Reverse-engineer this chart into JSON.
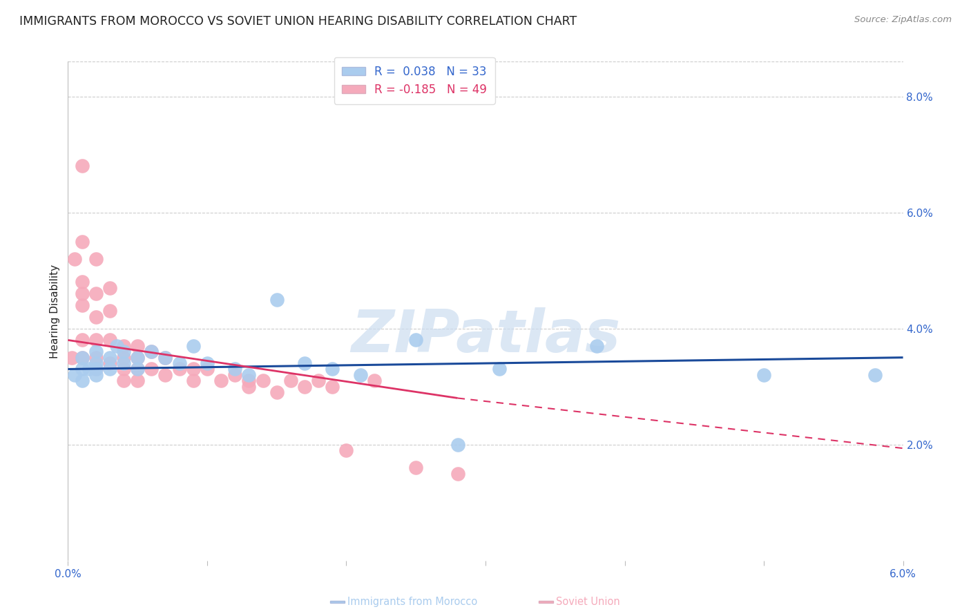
{
  "title": "IMMIGRANTS FROM MOROCCO VS SOVIET UNION HEARING DISABILITY CORRELATION CHART",
  "source": "Source: ZipAtlas.com",
  "ylabel": "Hearing Disability",
  "watermark": "ZIPatlas",
  "xlim": [
    0.0,
    0.06
  ],
  "ylim": [
    0.0,
    0.086
  ],
  "xtick_positions": [
    0.0,
    0.01,
    0.02,
    0.03,
    0.04,
    0.05,
    0.06
  ],
  "xtick_labels": [
    "0.0%",
    "",
    "",
    "",
    "",
    "",
    "6.0%"
  ],
  "yticks_right": [
    0.02,
    0.04,
    0.06,
    0.08
  ],
  "ytick_right_labels": [
    "2.0%",
    "4.0%",
    "6.0%",
    "8.0%"
  ],
  "morocco_R": 0.038,
  "morocco_N": 33,
  "soviet_R": -0.185,
  "soviet_N": 49,
  "morocco_color": "#aaccee",
  "soviet_color": "#f5aabb",
  "morocco_line_color": "#1a4a9a",
  "soviet_line_color": "#dd3366",
  "background_color": "#ffffff",
  "grid_color": "#cccccc",
  "axis_color": "#3366cc",
  "title_color": "#222222",
  "title_fontsize": 12.5,
  "label_fontsize": 11,
  "tick_fontsize": 11,
  "legend_fontsize": 12,
  "morocco_scatter_x": [
    0.0005,
    0.001,
    0.001,
    0.001,
    0.0015,
    0.002,
    0.002,
    0.002,
    0.002,
    0.003,
    0.003,
    0.0035,
    0.004,
    0.004,
    0.005,
    0.005,
    0.006,
    0.007,
    0.008,
    0.009,
    0.01,
    0.012,
    0.013,
    0.015,
    0.017,
    0.019,
    0.021,
    0.025,
    0.028,
    0.031,
    0.038,
    0.05,
    0.058
  ],
  "morocco_scatter_y": [
    0.032,
    0.033,
    0.031,
    0.035,
    0.033,
    0.036,
    0.034,
    0.032,
    0.033,
    0.035,
    0.033,
    0.037,
    0.036,
    0.034,
    0.033,
    0.035,
    0.036,
    0.035,
    0.034,
    0.037,
    0.034,
    0.033,
    0.032,
    0.045,
    0.034,
    0.033,
    0.032,
    0.038,
    0.02,
    0.033,
    0.037,
    0.032,
    0.032
  ],
  "soviet_scatter_x": [
    0.0003,
    0.0005,
    0.001,
    0.001,
    0.001,
    0.001,
    0.001,
    0.001,
    0.001,
    0.002,
    0.002,
    0.002,
    0.002,
    0.002,
    0.002,
    0.003,
    0.003,
    0.003,
    0.003,
    0.004,
    0.004,
    0.004,
    0.004,
    0.005,
    0.005,
    0.005,
    0.005,
    0.006,
    0.006,
    0.007,
    0.007,
    0.008,
    0.009,
    0.009,
    0.01,
    0.011,
    0.012,
    0.013,
    0.013,
    0.014,
    0.015,
    0.016,
    0.017,
    0.018,
    0.019,
    0.02,
    0.022,
    0.025,
    0.028
  ],
  "soviet_scatter_y": [
    0.035,
    0.052,
    0.068,
    0.055,
    0.048,
    0.046,
    0.044,
    0.038,
    0.035,
    0.052,
    0.046,
    0.042,
    0.038,
    0.035,
    0.033,
    0.047,
    0.043,
    0.038,
    0.034,
    0.037,
    0.035,
    0.033,
    0.031,
    0.037,
    0.035,
    0.033,
    0.031,
    0.036,
    0.033,
    0.035,
    0.032,
    0.033,
    0.033,
    0.031,
    0.033,
    0.031,
    0.032,
    0.031,
    0.03,
    0.031,
    0.029,
    0.031,
    0.03,
    0.031,
    0.03,
    0.019,
    0.031,
    0.016,
    0.015
  ],
  "legend_box_color": "#ddddee",
  "watermark_color": "#ccddf0",
  "watermark_alpha": 0.7
}
